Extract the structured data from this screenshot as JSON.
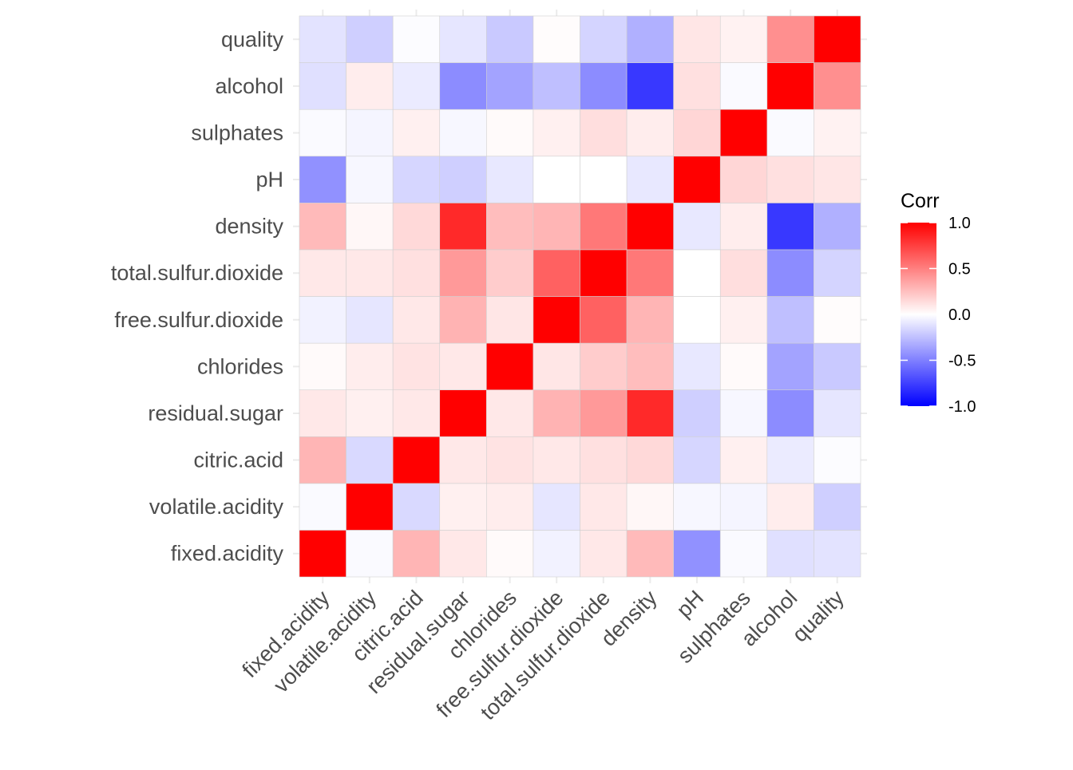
{
  "chart_data": {
    "type": "heatmap",
    "title": "",
    "xlabel": "",
    "ylabel": "",
    "variables": [
      "fixed.acidity",
      "volatile.acidity",
      "citric.acid",
      "residual.sugar",
      "chlorides",
      "free.sulfur.dioxide",
      "total.sulfur.dioxide",
      "density",
      "pH",
      "sulphates",
      "alcohol",
      "quality"
    ],
    "matrix": [
      [
        1.0,
        -0.02,
        0.29,
        0.09,
        0.02,
        -0.05,
        0.09,
        0.27,
        -0.43,
        -0.02,
        -0.12,
        -0.11
      ],
      [
        -0.02,
        1.0,
        -0.15,
        0.06,
        0.07,
        -0.1,
        0.09,
        0.03,
        -0.03,
        -0.04,
        0.07,
        -0.19
      ],
      [
        0.29,
        -0.15,
        1.0,
        0.09,
        0.11,
        0.09,
        0.12,
        0.15,
        -0.16,
        0.06,
        -0.08,
        -0.01
      ],
      [
        0.09,
        0.06,
        0.09,
        1.0,
        0.09,
        0.3,
        0.4,
        0.84,
        -0.19,
        -0.03,
        -0.45,
        -0.1
      ],
      [
        0.02,
        0.07,
        0.11,
        0.09,
        1.0,
        0.1,
        0.2,
        0.26,
        -0.09,
        0.02,
        -0.36,
        -0.21
      ],
      [
        -0.05,
        -0.1,
        0.09,
        0.3,
        0.1,
        1.0,
        0.62,
        0.29,
        0.0,
        0.06,
        -0.25,
        0.01
      ],
      [
        0.09,
        0.09,
        0.12,
        0.4,
        0.2,
        0.62,
        1.0,
        0.53,
        0.0,
        0.13,
        -0.45,
        -0.17
      ],
      [
        0.27,
        0.03,
        0.15,
        0.84,
        0.26,
        0.29,
        0.53,
        1.0,
        -0.09,
        0.07,
        -0.78,
        -0.31
      ],
      [
        -0.43,
        -0.03,
        -0.16,
        -0.19,
        -0.09,
        0.0,
        0.0,
        -0.09,
        1.0,
        0.16,
        0.12,
        0.1
      ],
      [
        -0.02,
        -0.04,
        0.06,
        -0.03,
        0.02,
        0.06,
        0.13,
        0.07,
        0.16,
        1.0,
        -0.02,
        0.05
      ],
      [
        -0.12,
        0.07,
        -0.08,
        -0.45,
        -0.36,
        -0.25,
        -0.45,
        -0.78,
        0.12,
        -0.02,
        1.0,
        0.44
      ],
      [
        -0.11,
        -0.19,
        -0.01,
        -0.1,
        -0.21,
        0.01,
        -0.17,
        -0.31,
        0.1,
        0.05,
        0.44,
        1.0
      ]
    ],
    "color_scale": {
      "low": "#0000FF",
      "mid": "#FFFFFF",
      "high": "#FF0000",
      "limits": [
        -1,
        1
      ]
    },
    "legend": {
      "title": "Corr",
      "ticks": [
        "1.0",
        "0.5",
        "0.0",
        "-0.5",
        "-1.0"
      ],
      "tick_values": [
        1,
        0.5,
        0,
        -0.5,
        -1
      ],
      "position": "right"
    },
    "grid": true
  }
}
